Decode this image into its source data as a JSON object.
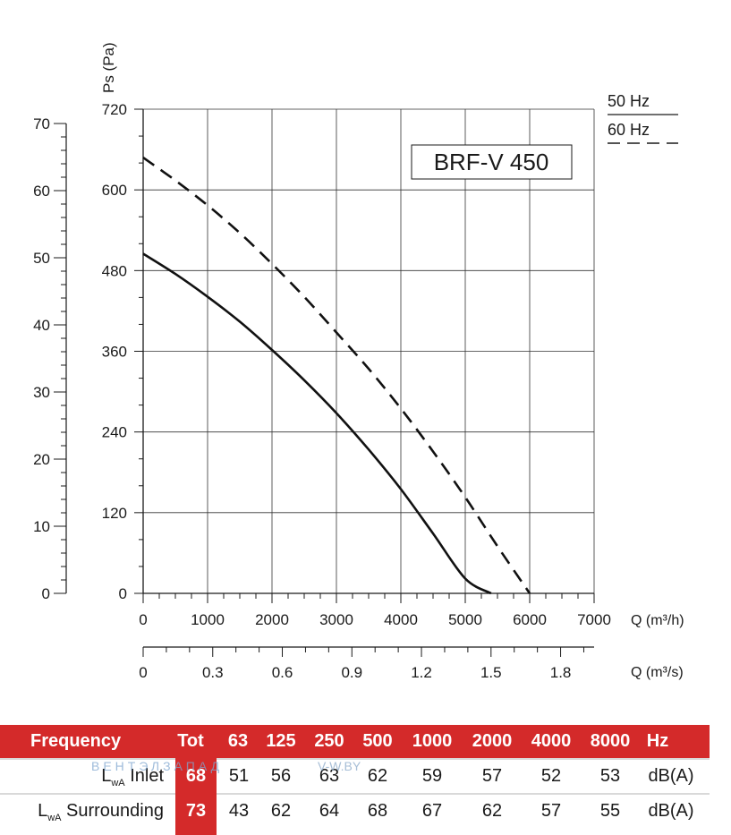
{
  "chart_data": {
    "type": "line",
    "title": "BRF-V 450",
    "ylabel": "Ps (Pa)",
    "y_ticks": [
      "0",
      "120",
      "240",
      "360",
      "480",
      "600",
      "720"
    ],
    "ylim": [
      0,
      720
    ],
    "y2_ticks": [
      "0",
      "10",
      "20",
      "30",
      "40",
      "50",
      "60",
      "70"
    ],
    "xlabel": "Q (m³/h)",
    "x_ticks": [
      "0",
      "1000",
      "2000",
      "3000",
      "4000",
      "5000",
      "6000",
      "7000"
    ],
    "xlim": [
      0,
      7000
    ],
    "x2label": "Q (m³/s)",
    "x2_ticks": [
      "0",
      "0.3",
      "0.6",
      "0.9",
      "1.2",
      "1.5",
      "1.8"
    ],
    "grid": true,
    "legend": [
      {
        "label": "50 Hz",
        "style": "solid"
      },
      {
        "label": "60 Hz",
        "style": "dashed"
      }
    ],
    "series": [
      {
        "name": "50 Hz",
        "style": "solid",
        "x": [
          0,
          500,
          1000,
          1500,
          2000,
          2500,
          3000,
          3500,
          4000,
          4500,
          5000,
          5400
        ],
        "y": [
          505,
          475,
          441,
          404,
          362,
          317,
          268,
          214,
          155,
          89,
          22,
          0
        ]
      },
      {
        "name": "60 Hz",
        "style": "dashed",
        "x": [
          0,
          500,
          1000,
          1500,
          2000,
          2500,
          3000,
          3500,
          4000,
          4500,
          5000,
          5500,
          6000
        ],
        "y": [
          648,
          614,
          577,
          536,
          490,
          441,
          388,
          334,
          275,
          211,
          143,
          70,
          0
        ]
      }
    ]
  },
  "noise_table": {
    "header": {
      "label": "Frequency",
      "cells": [
        "Tot",
        "63",
        "125",
        "250",
        "500",
        "1000",
        "2000",
        "4000",
        "8000",
        "Hz"
      ]
    },
    "rows": [
      {
        "label_main": "L",
        "label_sub": "wA",
        "label_rest": " Inlet",
        "values": [
          "68",
          "51",
          "56",
          "63",
          "62",
          "59",
          "57",
          "52",
          "53",
          "dB(A)"
        ]
      },
      {
        "label_main": "L",
        "label_sub": "wA",
        "label_rest": " Surrounding",
        "values": [
          "73",
          "43",
          "62",
          "64",
          "68",
          "67",
          "62",
          "57",
          "55",
          "dB(A)"
        ]
      }
    ],
    "watermark": "ВЕНТЭЛЗАПАД",
    "watermark_site": "V-W.BY"
  }
}
